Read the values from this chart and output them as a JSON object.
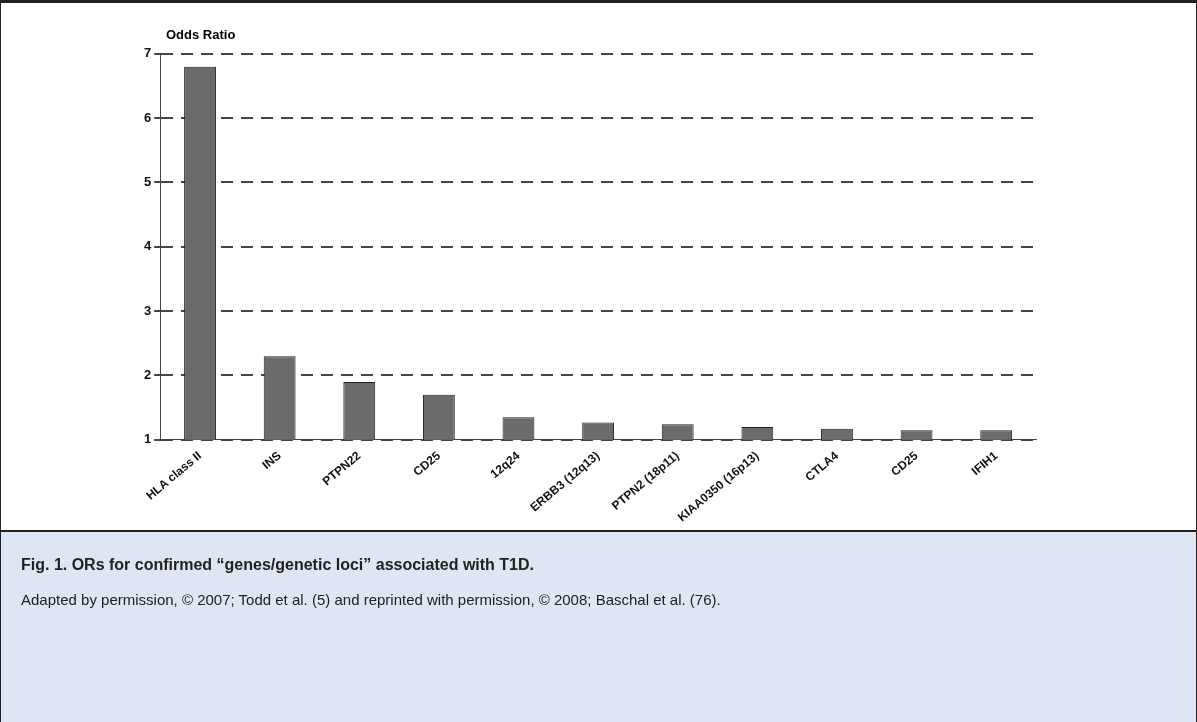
{
  "chart_data": {
    "type": "bar",
    "title": "Fig. 1. ORs for confirmed “genes/genetic loci” associated with T1D.",
    "ylabel": "Odds Ratio",
    "categories": [
      "HLA class II",
      "INS",
      "PTPN22",
      "CD25",
      "12q24",
      "ERBB3 (12q13)",
      "PTPN2 (18p11)",
      "KIAA0350 (16p13)",
      "CTLA4",
      "CD25",
      "IFIH1"
    ],
    "values": [
      6.8,
      2.3,
      1.9,
      1.7,
      1.35,
      1.27,
      1.24,
      1.2,
      1.17,
      1.15,
      1.15
    ],
    "color": "#6b6b6b",
    "ylim": [
      1,
      7
    ],
    "yticks": [
      1,
      2,
      3,
      4,
      5,
      6,
      7
    ],
    "grid": "y",
    "line_style": "dashed",
    "annotations": [
      "Adapted by permission, © 2007; Todd et al. (5) and reprinted with permission, © 2008; Baschal et al. (76)."
    ]
  }
}
